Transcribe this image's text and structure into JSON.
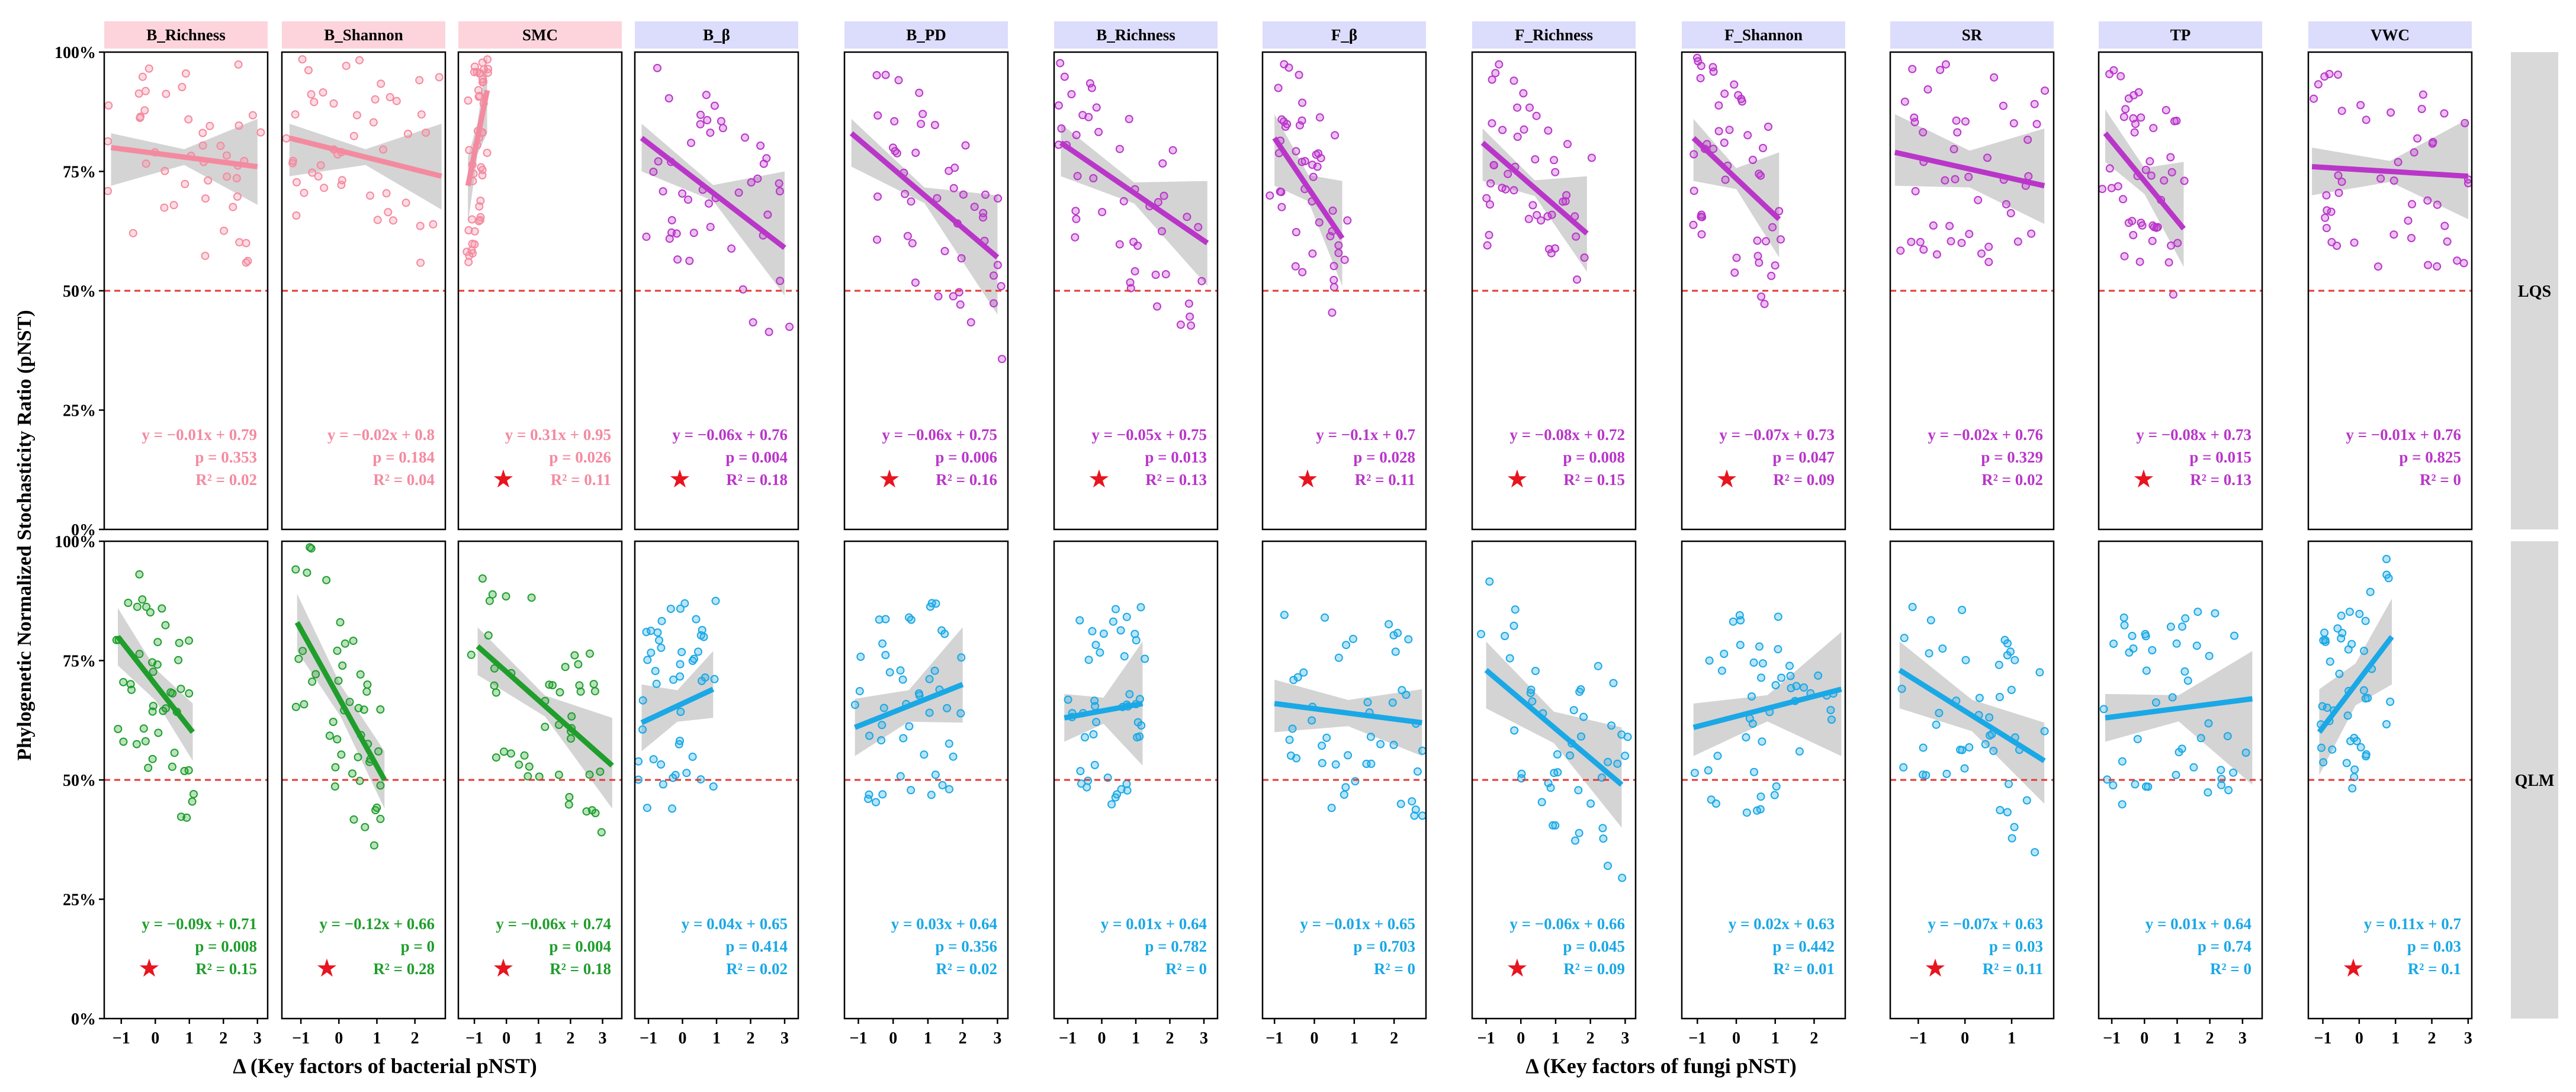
{
  "chart_data": {
    "type": "scatter",
    "title": "",
    "ylabel": "Phylogenetic Normalized Stochasticity Ratio  (pNST)",
    "group_xlabels": {
      "bacterial": "Δ  (Key factors of bacterial pNST)",
      "fungi": "Δ  (Key factors of fungi pNST)"
    },
    "ylim": [
      0,
      100
    ],
    "y_ticks": [
      "0%",
      "25%",
      "50%",
      "75%",
      "100%"
    ],
    "reference_line": {
      "y": 50,
      "style": "dashed",
      "color": "#e53935"
    },
    "colors": {
      "lqs_bacterial": "#f48aa0",
      "lqs_fungi": "#b936c9",
      "qlm_bacterial": "#1f9e2c",
      "qlm_fungi": "#1aa8e6",
      "star": "#e8141e",
      "header_bacterial": "#fdd4dc",
      "header_fungi": "#dcdcfc",
      "strip": "#d9d9d9",
      "refline": "#e53935"
    },
    "rows": [
      {
        "key": "LQS",
        "label": "LQS"
      },
      {
        "key": "QLM",
        "label": "QLM"
      }
    ],
    "columns": [
      {
        "label": "B_Richness",
        "group": "bacterial",
        "xlim": [
          -1.5,
          3.3
        ],
        "x_ticks": [
          -1,
          0,
          1,
          2,
          3
        ]
      },
      {
        "label": "B_Shannon",
        "group": "bacterial",
        "xlim": [
          -1.5,
          2.8
        ],
        "x_ticks": [
          -1,
          0,
          1,
          2
        ]
      },
      {
        "label": "SMC",
        "group": "bacterial",
        "xlim": [
          -1.5,
          3.6
        ],
        "x_ticks": [
          -1,
          0,
          1,
          2,
          3
        ]
      },
      {
        "label": "B_β",
        "group": "fungi",
        "xlim": [
          -1.4,
          3.4
        ],
        "x_ticks": [
          -1,
          0,
          1,
          2,
          3
        ]
      },
      {
        "label": "B_PD",
        "group": "fungi",
        "xlim": [
          -1.4,
          3.3
        ],
        "x_ticks": [
          -1,
          0,
          1,
          2,
          3
        ]
      },
      {
        "label": "B_Richness",
        "group": "fungi",
        "xlim": [
          -1.4,
          3.4
        ],
        "x_ticks": [
          -1,
          0,
          1,
          2,
          3
        ]
      },
      {
        "label": "F_β",
        "group": "fungi",
        "xlim": [
          -1.3,
          2.8
        ],
        "x_ticks": [
          -1,
          0,
          1,
          2
        ]
      },
      {
        "label": "F_Richness",
        "group": "fungi",
        "xlim": [
          -1.4,
          3.3
        ],
        "x_ticks": [
          -1,
          0,
          1,
          2,
          3
        ]
      },
      {
        "label": "F_Shannon",
        "group": "fungi",
        "xlim": [
          -1.4,
          2.8
        ],
        "x_ticks": [
          -1,
          0,
          1,
          2
        ]
      },
      {
        "label": "SR",
        "group": "fungi",
        "xlim": [
          -1.6,
          1.9
        ],
        "x_ticks": [
          -1,
          0,
          1
        ]
      },
      {
        "label": "TP",
        "group": "fungi",
        "xlim": [
          -1.4,
          3.6
        ],
        "x_ticks": [
          -1,
          0,
          1,
          2,
          3
        ]
      },
      {
        "label": "VWC",
        "group": "fungi",
        "xlim": [
          -1.4,
          3.1
        ],
        "x_ticks": [
          -1,
          0,
          1,
          2,
          3
        ]
      }
    ],
    "panels": [
      [
        {
          "equation": "y = −0.01x + 0.79",
          "p": "p = 0.353",
          "r2": "R² = 0.02",
          "sig": false,
          "line": {
            "x": [
              -1.3,
              3.0
            ],
            "y": [
              80,
              76
            ]
          },
          "band": [
            [
              3,
              8
            ],
            [
              10,
              8
            ]
          ],
          "spread": 1.6
        },
        {
          "equation": "y = −0.02x + 0.8",
          "p": "p = 0.184",
          "r2": "R² = 0.04",
          "sig": false,
          "line": {
            "x": [
              -1.3,
              2.7
            ],
            "y": [
              82,
              74
            ]
          },
          "band": [
            [
              3,
              8
            ],
            [
              11,
              7
            ]
          ],
          "spread": 1.4
        },
        {
          "equation": "y = 0.31x + 0.95",
          "p": "p = 0.026",
          "r2": "R² = 0.11",
          "sig": true,
          "line": {
            "x": [
              -1.2,
              -0.6
            ],
            "y": [
              72,
              92
            ]
          },
          "band": [
            [
              6,
              8
            ],
            [
              8,
              9
            ]
          ],
          "spread": 0.3
        },
        {
          "equation": "y = −0.06x + 0.76",
          "p": "p = 0.004",
          "r2": "R² = 0.18",
          "sig": true,
          "line": {
            "x": [
              -1.2,
              3.0
            ],
            "y": [
              82,
              59
            ]
          },
          "band": [
            [
              3,
              7
            ],
            [
              16,
              10
            ]
          ],
          "spread": 1.6
        },
        {
          "equation": "y = −0.06x + 0.75",
          "p": "p = 0.006",
          "r2": "R² = 0.16",
          "sig": true,
          "line": {
            "x": [
              -1.2,
              3.0
            ],
            "y": [
              83,
              57
            ]
          },
          "band": [
            [
              3,
              7
            ],
            [
              13,
              12
            ]
          ],
          "spread": 1.6
        },
        {
          "equation": "y = −0.05x + 0.75",
          "p": "p = 0.013",
          "r2": "R² = 0.13",
          "sig": true,
          "line": {
            "x": [
              -1.2,
              3.1
            ],
            "y": [
              81,
              60
            ]
          },
          "band": [
            [
              4,
              7
            ],
            [
              13,
              9
            ]
          ],
          "spread": 1.6
        },
        {
          "equation": "y = −0.1x + 0.7",
          "p": "p = 0.028",
          "r2": "R² = 0.11",
          "sig": true,
          "line": {
            "x": [
              -1.0,
              0.7
            ],
            "y": [
              82,
              61
            ]
          },
          "band": [
            [
              5,
              10
            ],
            [
              12,
              10
            ]
          ],
          "spread": 1.0
        },
        {
          "equation": "y = −0.08x + 0.72",
          "p": "p = 0.008",
          "r2": "R² = 0.15",
          "sig": true,
          "line": {
            "x": [
              -1.1,
              1.9
            ],
            "y": [
              81,
              62
            ]
          },
          "band": [
            [
              3,
              8
            ],
            [
              12,
              8
            ]
          ],
          "spread": 1.3
        },
        {
          "equation": "y = −0.07x + 0.73",
          "p": "p = 0.047",
          "r2": "R² = 0.09",
          "sig": true,
          "line": {
            "x": [
              -1.1,
              1.1
            ],
            "y": [
              82,
              65
            ]
          },
          "band": [
            [
              4,
              9
            ],
            [
              14,
              8
            ]
          ],
          "spread": 1.1
        },
        {
          "equation": "y = −0.02x + 0.76",
          "p": "p = 0.329",
          "r2": "R² = 0.02",
          "sig": false,
          "line": {
            "x": [
              -1.5,
              1.7
            ],
            "y": [
              79,
              72
            ]
          },
          "band": [
            [
              8,
              7
            ],
            [
              12,
              8
            ]
          ],
          "spread": 1.2
        },
        {
          "equation": "y = −0.08x + 0.73",
          "p": "p = 0.015",
          "r2": "R² = 0.13",
          "sig": true,
          "line": {
            "x": [
              -1.2,
              1.2
            ],
            "y": [
              83,
              63
            ]
          },
          "band": [
            [
              5,
              6
            ],
            [
              14,
              8
            ]
          ],
          "spread": 1.2
        },
        {
          "equation": "y = −0.01x + 0.76",
          "p": "p = 0.825",
          "r2": "R² = 0",
          "sig": false,
          "line": {
            "x": [
              -1.3,
              3.0
            ],
            "y": [
              76,
              74
            ]
          },
          "band": [
            [
              4,
              6
            ],
            [
              12,
              9
            ]
          ],
          "spread": 1.4
        }
      ],
      [
        {
          "equation": "y = −0.09x + 0.71",
          "p": "p = 0.008",
          "r2": "R² = 0.15",
          "sig": true,
          "line": {
            "x": [
              -1.1,
              1.1
            ],
            "y": [
              80,
              60
            ]
          },
          "band": [
            [
              6,
              6
            ],
            [
              6,
              6
            ]
          ],
          "spread": 1.0
        },
        {
          "equation": "y = −0.12x + 0.66",
          "p": "p = 0",
          "r2": "R² = 0.28",
          "sig": true,
          "line": {
            "x": [
              -1.1,
              1.2
            ],
            "y": [
              83,
              50
            ]
          },
          "band": [
            [
              6,
              6
            ],
            [
              6,
              6
            ]
          ],
          "spread": 1.0
        },
        {
          "equation": "y = −0.06x + 0.74",
          "p": "p = 0.004",
          "r2": "R² = 0.18",
          "sig": true,
          "line": {
            "x": [
              -0.9,
              3.3
            ],
            "y": [
              78,
              53
            ]
          },
          "band": [
            [
              4,
              6
            ],
            [
              10,
              9
            ]
          ],
          "spread": 1.4
        },
        {
          "equation": "y = 0.04x + 0.65",
          "p": "p = 0.414",
          "r2": "R² = 0.02",
          "sig": false,
          "line": {
            "x": [
              -1.2,
              0.9
            ],
            "y": [
              62,
              69
            ]
          },
          "band": [
            [
              8,
              6
            ],
            [
              8,
              6
            ]
          ],
          "spread": 1.1
        },
        {
          "equation": "y = 0.03x + 0.64",
          "p": "p = 0.356",
          "r2": "R² = 0.02",
          "sig": false,
          "line": {
            "x": [
              -1.1,
              2.0
            ],
            "y": [
              61,
              70
            ]
          },
          "band": [
            [
              6,
              6
            ],
            [
              12,
              8
            ]
          ],
          "spread": 1.5
        },
        {
          "equation": "y = 0.01x + 0.64",
          "p": "p = 0.782",
          "r2": "R² = 0",
          "sig": false,
          "line": {
            "x": [
              -1.1,
              1.2
            ],
            "y": [
              63,
              66
            ]
          },
          "band": [
            [
              5,
              5
            ],
            [
              13,
              13
            ]
          ],
          "spread": 1.2
        },
        {
          "equation": "y = −0.01x + 0.65",
          "p": "p = 0.703",
          "r2": "R² = 0",
          "sig": false,
          "line": {
            "x": [
              -1.0,
              2.7
            ],
            "y": [
              66,
              62
            ]
          },
          "band": [
            [
              5,
              6
            ],
            [
              7,
              7
            ]
          ],
          "spread": 1.5
        },
        {
          "equation": "y = −0.06x + 0.66",
          "p": "p = 0.045",
          "r2": "R² = 0.09",
          "sig": true,
          "line": {
            "x": [
              -1.0,
              2.9
            ],
            "y": [
              73,
              49
            ]
          },
          "band": [
            [
              6,
              8
            ],
            [
              12,
              9
            ]
          ],
          "spread": 1.5
        },
        {
          "equation": "y = 0.02x + 0.63",
          "p": "p = 0.442",
          "r2": "R² = 0.01",
          "sig": false,
          "line": {
            "x": [
              -1.1,
              2.7
            ],
            "y": [
              61,
              69
            ]
          },
          "band": [
            [
              5,
              6
            ],
            [
              12,
              14
            ]
          ],
          "spread": 1.5
        },
        {
          "equation": "y = −0.07x + 0.63",
          "p": "p = 0.03",
          "r2": "R² = 0.11",
          "sig": true,
          "line": {
            "x": [
              -1.4,
              1.7
            ],
            "y": [
              73,
              54
            ]
          },
          "band": [
            [
              6,
              8
            ],
            [
              8,
              9
            ]
          ],
          "spread": 1.2
        },
        {
          "equation": "y = 0.01x + 0.64",
          "p": "p = 0.74",
          "r2": "R² = 0",
          "sig": false,
          "line": {
            "x": [
              -1.2,
              3.3
            ],
            "y": [
              63,
              67
            ]
          },
          "band": [
            [
              5,
              5
            ],
            [
              10,
              18
            ]
          ],
          "spread": 1.5
        },
        {
          "equation": "y = 0.11x + 0.7",
          "p": "p = 0.03",
          "r2": "R² = 0.1",
          "sig": true,
          "line": {
            "x": [
              -1.1,
              0.9
            ],
            "y": [
              60,
              80
            ]
          },
          "band": [
            [
              9,
              9
            ],
            [
              8,
              10
            ]
          ],
          "spread": 0.9
        }
      ]
    ]
  }
}
